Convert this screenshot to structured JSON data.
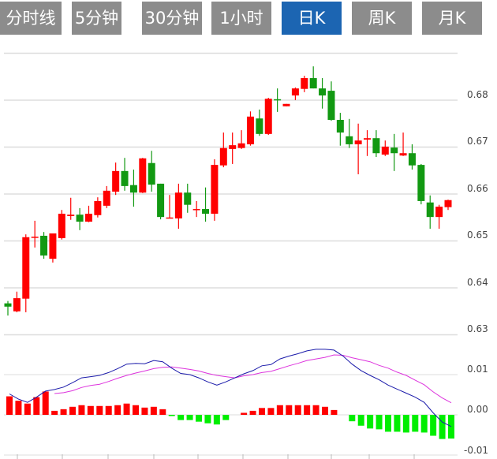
{
  "tabs": [
    {
      "label": "分时线",
      "active": false
    },
    {
      "label": "5分钟",
      "active": false
    },
    {
      "label": "30分钟",
      "active": false
    },
    {
      "label": "1小时",
      "active": false
    },
    {
      "label": "日K",
      "active": true
    },
    {
      "label": "周K",
      "active": false
    },
    {
      "label": "月K",
      "active": false
    }
  ],
  "colors": {
    "up": "#ff0000",
    "down": "#129912",
    "hist_up": "#ff0000",
    "hist_down": "#00ee00",
    "dif": "#1a1aaa",
    "dea": "#dd33dd",
    "tab_active": "#1c65b2",
    "tab": "#8c8c8c"
  },
  "chart_data": [
    {
      "type": "candlestick",
      "yaxis_ticks": [
        "0.68",
        "0.67",
        "0.66",
        "0.65",
        "0.64",
        "0.63"
      ],
      "ylim": [
        0.63,
        0.69
      ],
      "grid": true,
      "ohlc": [
        [
          0.6367,
          0.6372,
          0.6341,
          0.636
        ],
        [
          0.635,
          0.6392,
          0.6348,
          0.6378
        ],
        [
          0.6377,
          0.6514,
          0.6348,
          0.6508
        ],
        [
          0.6508,
          0.6543,
          0.6486,
          0.6509
        ],
        [
          0.6511,
          0.6519,
          0.6462,
          0.6469
        ],
        [
          0.6462,
          0.6516,
          0.6454,
          0.6516
        ],
        [
          0.6506,
          0.6566,
          0.6503,
          0.6558
        ],
        [
          0.6553,
          0.6592,
          0.6545,
          0.6556
        ],
        [
          0.6556,
          0.657,
          0.6523,
          0.6541
        ],
        [
          0.6541,
          0.6575,
          0.654,
          0.6558
        ],
        [
          0.6555,
          0.6593,
          0.655,
          0.6585
        ],
        [
          0.6575,
          0.6617,
          0.657,
          0.6607
        ],
        [
          0.6605,
          0.6667,
          0.6598,
          0.6649
        ],
        [
          0.6649,
          0.6677,
          0.6607,
          0.6617
        ],
        [
          0.6619,
          0.6652,
          0.6573,
          0.6603
        ],
        [
          0.6603,
          0.6677,
          0.6602,
          0.6676
        ],
        [
          0.6666,
          0.6692,
          0.6605,
          0.662
        ],
        [
          0.6622,
          0.6622,
          0.6546,
          0.6551
        ],
        [
          0.6548,
          0.6598,
          0.6548,
          0.655
        ],
        [
          0.6548,
          0.6622,
          0.6526,
          0.6603
        ],
        [
          0.6603,
          0.6622,
          0.656,
          0.6577
        ],
        [
          0.6566,
          0.6585,
          0.6551,
          0.6568
        ],
        [
          0.6568,
          0.6614,
          0.6541,
          0.6558
        ],
        [
          0.6558,
          0.6674,
          0.6543,
          0.6662
        ],
        [
          0.6661,
          0.6731,
          0.6657,
          0.6698
        ],
        [
          0.6696,
          0.6731,
          0.6664,
          0.6704
        ],
        [
          0.6698,
          0.6736,
          0.6696,
          0.6708
        ],
        [
          0.6706,
          0.6776,
          0.6703,
          0.6765
        ],
        [
          0.6761,
          0.678,
          0.6724,
          0.6728
        ],
        [
          0.6728,
          0.6805,
          0.6726,
          0.6803
        ],
        [
          0.6802,
          0.6825,
          0.6775,
          0.68
        ],
        [
          0.6787,
          0.6792,
          0.6787,
          0.6792
        ],
        [
          0.681,
          0.6827,
          0.68,
          0.6825
        ],
        [
          0.6824,
          0.6852,
          0.6817,
          0.6847
        ],
        [
          0.6847,
          0.6872,
          0.6825,
          0.6825
        ],
        [
          0.6825,
          0.6847,
          0.6782,
          0.681
        ],
        [
          0.682,
          0.684,
          0.6756,
          0.6758
        ],
        [
          0.6758,
          0.6773,
          0.6703,
          0.6731
        ],
        [
          0.6723,
          0.676,
          0.6698,
          0.6706
        ],
        [
          0.6706,
          0.675,
          0.6642,
          0.6714
        ],
        [
          0.6716,
          0.6736,
          0.6681,
          0.6719
        ],
        [
          0.6719,
          0.6736,
          0.6679,
          0.6687
        ],
        [
          0.6684,
          0.6714,
          0.6681,
          0.6701
        ],
        [
          0.6699,
          0.6728,
          0.6649,
          0.6687
        ],
        [
          0.6682,
          0.6731,
          0.6681,
          0.6687
        ],
        [
          0.6687,
          0.6706,
          0.6652,
          0.6661
        ],
        [
          0.6662,
          0.6664,
          0.6578,
          0.6585
        ],
        [
          0.6582,
          0.6597,
          0.6526,
          0.6551
        ],
        [
          0.6551,
          0.6577,
          0.6526,
          0.6573
        ],
        [
          0.6572,
          0.6588,
          0.6566,
          0.6587
        ]
      ]
    },
    {
      "type": "macd",
      "yaxis_ticks": [
        "0.01",
        "0.00",
        "-0.01"
      ],
      "ylim": [
        -0.01,
        0.02
      ],
      "grid": true,
      "hist": [
        0.0046,
        0.0035,
        0.0028,
        0.0044,
        0.0058,
        0.001,
        0.0014,
        0.002,
        0.0024,
        0.0022,
        0.0022,
        0.0022,
        0.0024,
        0.0028,
        0.0024,
        0.0018,
        0.002,
        0.0014,
        -0.0003,
        -0.0013,
        -0.0013,
        -0.0017,
        -0.0021,
        -0.0024,
        -0.0013,
        0,
        0.0005,
        0.001,
        0.0017,
        0.0017,
        0.0024,
        0.0024,
        0.0024,
        0.0024,
        0.0024,
        0.002,
        0.0012,
        0,
        -0.0016,
        -0.0027,
        -0.0034,
        -0.0036,
        -0.0042,
        -0.0042,
        -0.0044,
        -0.0042,
        -0.0044,
        -0.0052,
        -0.006,
        -0.0059
      ],
      "dif": [
        0.0052,
        0.0039,
        0.0031,
        0.0044,
        0.0059,
        0.0063,
        0.0069,
        0.008,
        0.0092,
        0.0095,
        0.0098,
        0.0105,
        0.0115,
        0.0126,
        0.0128,
        0.0127,
        0.0135,
        0.0132,
        0.0116,
        0.0103,
        0.01,
        0.0092,
        0.0082,
        0.0074,
        0.0082,
        0.0092,
        0.0102,
        0.011,
        0.0122,
        0.0125,
        0.0139,
        0.0146,
        0.0152,
        0.0159,
        0.0163,
        0.0163,
        0.0161,
        0.0146,
        0.0126,
        0.011,
        0.0098,
        0.0087,
        0.0074,
        0.0064,
        0.0054,
        0.0044,
        0.0031,
        0.0005,
        -0.0018,
        -0.0029
      ],
      "dea": [
        null,
        null,
        null,
        null,
        null,
        0.0053,
        0.0055,
        0.006,
        0.0068,
        0.0073,
        0.0076,
        0.0083,
        0.0091,
        0.0098,
        0.0104,
        0.0109,
        0.0115,
        0.0118,
        0.0119,
        0.0116,
        0.0113,
        0.0109,
        0.0103,
        0.0098,
        0.0095,
        0.0092,
        0.0097,
        0.01,
        0.0105,
        0.0108,
        0.0115,
        0.0122,
        0.0128,
        0.0135,
        0.0139,
        0.0143,
        0.0149,
        0.0148,
        0.0142,
        0.0137,
        0.0132,
        0.0123,
        0.0116,
        0.0106,
        0.0098,
        0.0086,
        0.0075,
        0.0057,
        0.0042,
        0.003
      ]
    }
  ]
}
